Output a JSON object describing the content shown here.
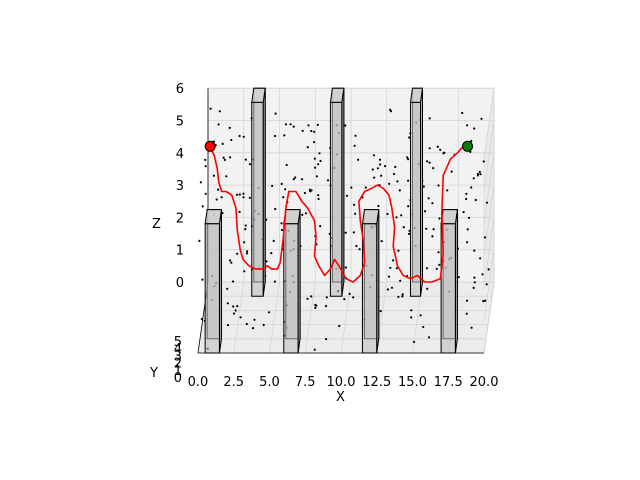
{
  "chart_data": {
    "type": "scatter",
    "projection": "3d",
    "xlabel": "X",
    "ylabel": "Y",
    "zlabel": "Z",
    "xlim": [
      0,
      20
    ],
    "ylim": [
      0,
      5
    ],
    "zlim": [
      0,
      6
    ],
    "x_ticks": [
      "0.0",
      "2.5",
      "5.0",
      "7.5",
      "10.0",
      "12.5",
      "15.0",
      "17.5",
      "20.0"
    ],
    "y_ticks": [
      "0",
      "1",
      "2",
      "3",
      "4",
      "5"
    ],
    "z_ticks": [
      "0",
      "1",
      "2",
      "3",
      "4",
      "5",
      "6"
    ],
    "grid": true,
    "colors": {
      "path": "#ff0000",
      "start": "#ff0000",
      "goal": "#008000",
      "obstacle_face": "#bdbdbd",
      "points": "#000000"
    },
    "start": {
      "x": 0.5,
      "y": 5,
      "z": 5.3
    },
    "goal": {
      "x": 18.5,
      "y": 5,
      "z": 5.3
    },
    "obstacles": [
      {
        "x": [
          0.5,
          1.5
        ],
        "y": [
          0,
          1
        ],
        "z": [
          0,
          4
        ]
      },
      {
        "x": [
          3.2,
          4.0
        ],
        "y": [
          4,
          5
        ],
        "z": [
          0,
          6
        ]
      },
      {
        "x": [
          6.0,
          7.0
        ],
        "y": [
          0,
          1
        ],
        "z": [
          0,
          4
        ]
      },
      {
        "x": [
          8.7,
          9.5
        ],
        "y": [
          4,
          5
        ],
        "z": [
          0,
          6
        ]
      },
      {
        "x": [
          11.5,
          12.5
        ],
        "y": [
          0,
          1
        ],
        "z": [
          0,
          4
        ]
      },
      {
        "x": [
          14.3,
          15.0
        ],
        "y": [
          4,
          5
        ],
        "z": [
          0,
          6
        ]
      },
      {
        "x": [
          17.0,
          18.0
        ],
        "y": [
          0,
          1
        ],
        "z": [
          0,
          4
        ]
      }
    ],
    "path": [
      [
        0.5,
        5.3
      ],
      [
        0.8,
        5.0
      ],
      [
        1.0,
        4.6
      ],
      [
        1.1,
        4.2
      ],
      [
        1.3,
        3.9
      ],
      [
        1.6,
        3.9
      ],
      [
        2.0,
        3.8
      ],
      [
        2.3,
        3.4
      ],
      [
        2.4,
        2.7
      ],
      [
        2.6,
        2.1
      ],
      [
        2.8,
        1.8
      ],
      [
        3.2,
        1.6
      ],
      [
        3.7,
        1.5
      ],
      [
        4.1,
        1.5
      ],
      [
        4.5,
        1.6
      ],
      [
        4.8,
        1.5
      ],
      [
        5.2,
        1.5
      ],
      [
        5.4,
        1.7
      ],
      [
        5.6,
        2.4
      ],
      [
        5.8,
        3.4
      ],
      [
        6.0,
        3.9
      ],
      [
        6.5,
        3.9
      ],
      [
        6.9,
        3.6
      ],
      [
        7.3,
        3.4
      ],
      [
        7.8,
        3.0
      ],
      [
        7.9,
        2.5
      ],
      [
        7.8,
        1.9
      ],
      [
        8.1,
        1.6
      ],
      [
        8.5,
        1.3
      ],
      [
        8.9,
        1.5
      ],
      [
        9.2,
        1.8
      ],
      [
        9.5,
        1.6
      ],
      [
        10.0,
        1.2
      ],
      [
        10.5,
        1.1
      ],
      [
        11.0,
        1.3
      ],
      [
        11.3,
        1.7
      ],
      [
        11.2,
        2.4
      ],
      [
        11.0,
        3.0
      ],
      [
        10.9,
        3.6
      ],
      [
        11.3,
        3.9
      ],
      [
        11.8,
        4.0
      ],
      [
        12.2,
        4.1
      ],
      [
        12.6,
        4.0
      ],
      [
        13.0,
        3.8
      ],
      [
        13.2,
        3.4
      ],
      [
        13.4,
        2.8
      ],
      [
        13.3,
        2.2
      ],
      [
        13.6,
        1.6
      ],
      [
        14.0,
        1.3
      ],
      [
        14.5,
        1.2
      ],
      [
        15.0,
        1.3
      ],
      [
        15.5,
        1.1
      ],
      [
        16.0,
        1.1
      ],
      [
        16.6,
        1.2
      ],
      [
        16.8,
        2.0
      ],
      [
        16.7,
        3.2
      ],
      [
        16.8,
        4.4
      ],
      [
        17.3,
        4.9
      ],
      [
        17.8,
        5.1
      ],
      [
        18.2,
        5.3
      ]
    ]
  }
}
